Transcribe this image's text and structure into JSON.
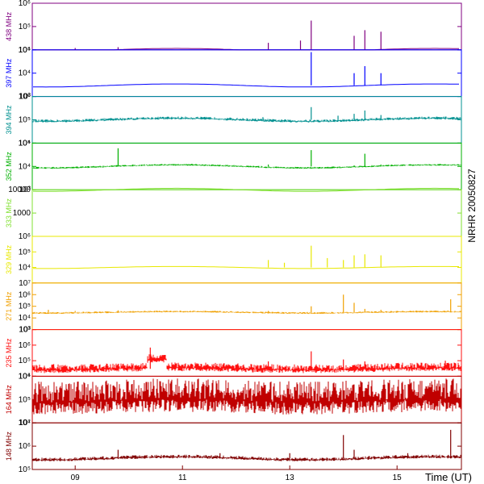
{
  "chart_data": {
    "type": "line",
    "title": "NRHR 20050827",
    "xlabel": "Time (UT)",
    "x_ticks": [
      "09",
      "11",
      "13",
      "15"
    ],
    "x_tick_values": [
      9,
      11,
      13,
      15
    ],
    "xlim": [
      8.2,
      16.2
    ],
    "y_scale": "log",
    "panels": [
      {
        "name": "438 MHz",
        "color": "#800080",
        "ylim": [
          10000,
          1000000
        ],
        "ytick_labels": [
          "10⁴",
          "10⁵",
          "10⁶"
        ],
        "ytick_values": [
          10000,
          100000,
          1000000
        ],
        "baseline": 10000,
        "noise": 0,
        "spikes": [
          [
            9.0,
            12000
          ],
          [
            9.8,
            13000
          ],
          [
            12.6,
            20000
          ],
          [
            13.2,
            25000
          ],
          [
            13.4,
            180000
          ],
          [
            14.2,
            40000
          ],
          [
            14.4,
            70000
          ],
          [
            14.7,
            60000
          ]
        ],
        "bursts": []
      },
      {
        "name": "397 MHz",
        "color": "#0000ff",
        "ylim": [
          1000,
          100000
        ],
        "ytick_labels": [
          "10³",
          "10⁴",
          "10⁵"
        ],
        "ytick_values": [
          1000,
          10000,
          100000
        ],
        "baseline": 3000,
        "noise": 0,
        "spikes": [
          [
            13.4,
            80000
          ],
          [
            14.2,
            10000
          ],
          [
            14.4,
            20000
          ],
          [
            14.7,
            10000
          ]
        ],
        "bursts": []
      },
      {
        "name": "394 MHz",
        "color": "#009090",
        "ylim": [
          10000,
          1000000
        ],
        "ytick_labels": [
          "10⁴",
          "10⁵",
          "10⁶"
        ],
        "ytick_values": [
          10000,
          100000,
          1000000
        ],
        "baseline": 100000,
        "noise": 0.08,
        "spikes": [
          [
            12.5,
            130000
          ],
          [
            13.4,
            350000
          ],
          [
            13.9,
            150000
          ],
          [
            14.2,
            180000
          ],
          [
            14.4,
            250000
          ],
          [
            14.7,
            160000
          ]
        ],
        "bursts": []
      },
      {
        "name": "352 MHz",
        "color": "#00b000",
        "ylim": [
          1000,
          100000
        ],
        "ytick_labels": [
          "10³",
          "10⁴",
          "10⁵"
        ],
        "ytick_values": [
          1000,
          10000,
          100000
        ],
        "baseline": 10000,
        "noise": 0.05,
        "spikes": [
          [
            9.8,
            60000
          ],
          [
            12.6,
            12000
          ],
          [
            13.4,
            50000
          ],
          [
            14.2,
            11000
          ],
          [
            14.4,
            35000
          ],
          [
            14.7,
            12000
          ]
        ],
        "bursts": []
      },
      {
        "name": "333 MHz",
        "color": "#80e030",
        "ylim": [
          100,
          10000
        ],
        "ytick_labels": [
          "1000",
          "10000"
        ],
        "ytick_values": [
          1000,
          10000
        ],
        "baseline": 10000,
        "noise": 0,
        "spikes": [],
        "bursts": []
      },
      {
        "name": "329 MHz",
        "color": "#e8e800",
        "ylim": [
          1000,
          1000000
        ],
        "ytick_labels": [
          "10⁴",
          "10⁵",
          "10⁶"
        ],
        "ytick_values": [
          10000,
          100000,
          1000000
        ],
        "baseline": 10000,
        "noise": 0,
        "spikes": [
          [
            12.6,
            30000
          ],
          [
            12.9,
            20000
          ],
          [
            13.4,
            250000
          ],
          [
            13.7,
            40000
          ],
          [
            14.0,
            30000
          ],
          [
            14.2,
            60000
          ],
          [
            14.4,
            70000
          ],
          [
            14.7,
            60000
          ]
        ],
        "bursts": []
      },
      {
        "name": "271 MHz",
        "color": "#f0a000",
        "ylim": [
          1000,
          10000000
        ],
        "ytick_labels": [
          "10³",
          "10⁴",
          "10⁵",
          "10⁶",
          "10⁷"
        ],
        "ytick_values": [
          1000,
          10000,
          100000,
          1000000,
          10000000
        ],
        "baseline": 30000,
        "noise": 0.1,
        "spikes": [
          [
            8.5,
            50000
          ],
          [
            9.0,
            40000
          ],
          [
            9.8,
            45000
          ],
          [
            12.6,
            40000
          ],
          [
            13.4,
            100000
          ],
          [
            14.0,
            1000000
          ],
          [
            14.2,
            200000
          ],
          [
            14.4,
            60000
          ],
          [
            14.7,
            50000
          ],
          [
            16.0,
            400000
          ]
        ],
        "bursts": []
      },
      {
        "name": "235 MHz",
        "color": "#ff1010",
        "ylim": [
          10000,
          10000000
        ],
        "ytick_labels": [
          "10⁴",
          "10⁵",
          "10⁶",
          "10⁷"
        ],
        "ytick_values": [
          10000,
          100000,
          1000000,
          10000000
        ],
        "baseline": 30000,
        "noise": 0.35,
        "spikes": [
          [
            8.6,
            60000
          ],
          [
            10.4,
            700000
          ],
          [
            12.6,
            90000
          ],
          [
            13.4,
            400000
          ],
          [
            14.0,
            120000
          ],
          [
            14.4,
            90000
          ],
          [
            15.9,
            100000
          ]
        ],
        "bursts": [
          [
            10.35,
            10.7,
            120000
          ]
        ]
      },
      {
        "name": "164 MHz",
        "color": "#c00000",
        "ylim": [
          10000,
          1000000
        ],
        "ytick_labels": [
          "10⁴",
          "10⁵",
          "10⁶"
        ],
        "ytick_values": [
          10000,
          100000,
          1000000
        ],
        "baseline": 90000,
        "noise": 0.9,
        "spikes": [],
        "bursts": []
      },
      {
        "name": "148 MHz",
        "color": "#800000",
        "ylim": [
          100000,
          10000000
        ],
        "ytick_labels": [
          "10⁵",
          "10⁶",
          "10⁷"
        ],
        "ytick_values": [
          100000,
          1000000,
          10000000
        ],
        "baseline": 300000,
        "noise": 0.1,
        "spikes": [
          [
            9.8,
            700000
          ],
          [
            11.7,
            500000
          ],
          [
            13.0,
            500000
          ],
          [
            14.0,
            3000000
          ],
          [
            14.2,
            700000
          ],
          [
            15.2,
            500000
          ],
          [
            16.0,
            5000000
          ]
        ],
        "bursts": []
      }
    ]
  }
}
